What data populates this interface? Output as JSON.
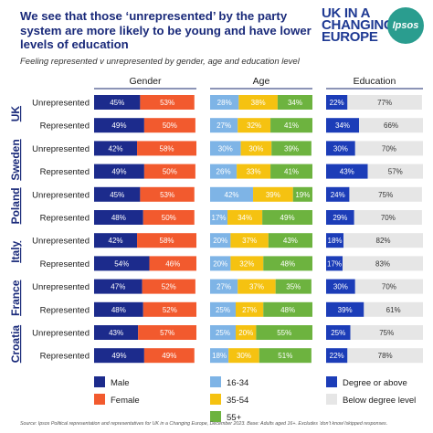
{
  "title": "We see that those ‘unrepresented’ by the party system are more likely to be young and have lower levels of education",
  "logo": {
    "text": "UK IN A CHANGING EUROPE",
    "partner": "Ipsos"
  },
  "source": "Source: Ipsos Political representation and representatives for UK in a Changing Europe, December 2023. Base: Adults aged 16+. Excludes ‘don’t know’/skipped responses.",
  "colors": {
    "male": "#1c2b8c",
    "female": "#f25a2e",
    "age_16_34": "#7eb4e6",
    "age_35_54": "#f5c211",
    "age_55_plus": "#6db33f",
    "degree": "#1c3db8",
    "below_degree": "#e6e6e6"
  },
  "chart_data": {
    "type": "bar",
    "subtitle": "Feeling represented v unrepresented by gender, age and education level",
    "panels": [
      "Gender",
      "Age",
      "Education"
    ],
    "countries": [
      "UK",
      "Sweden",
      "Poland",
      "Italy",
      "France",
      "Croatia"
    ],
    "rows": [
      {
        "country": "UK",
        "group": "Unrepresented",
        "gender": [
          45,
          53
        ],
        "age": [
          28,
          38,
          34
        ],
        "education": [
          22,
          77
        ]
      },
      {
        "country": "UK",
        "group": "Represented",
        "gender": [
          49,
          50
        ],
        "age": [
          27,
          32,
          41
        ],
        "education": [
          34,
          66
        ]
      },
      {
        "country": "Sweden",
        "group": "Unrepresented",
        "gender": [
          42,
          58
        ],
        "age": [
          30,
          30,
          39
        ],
        "education": [
          30,
          70
        ]
      },
      {
        "country": "Sweden",
        "group": "Represented",
        "gender": [
          49,
          50
        ],
        "age": [
          26,
          33,
          41
        ],
        "education": [
          43,
          57
        ]
      },
      {
        "country": "Poland",
        "group": "Unrepresented",
        "gender": [
          45,
          53
        ],
        "age": [
          42,
          39,
          19
        ],
        "education": [
          24,
          75
        ]
      },
      {
        "country": "Poland",
        "group": "Represented",
        "gender": [
          48,
          50
        ],
        "age": [
          17,
          34,
          49
        ],
        "education": [
          29,
          70
        ]
      },
      {
        "country": "Italy",
        "group": "Unrepresented",
        "gender": [
          42,
          58
        ],
        "age": [
          20,
          37,
          43
        ],
        "education": [
          18,
          82
        ]
      },
      {
        "country": "Italy",
        "group": "Represented",
        "gender": [
          54,
          46
        ],
        "age": [
          20,
          32,
          48
        ],
        "education": [
          17,
          83
        ]
      },
      {
        "country": "France",
        "group": "Unrepresented",
        "gender": [
          47,
          52
        ],
        "age": [
          27,
          37,
          35
        ],
        "education": [
          30,
          70
        ]
      },
      {
        "country": "France",
        "group": "Represented",
        "gender": [
          48,
          52
        ],
        "age": [
          25,
          27,
          48
        ],
        "education": [
          39,
          61
        ]
      },
      {
        "country": "Croatia",
        "group": "Unrepresented",
        "gender": [
          43,
          57
        ],
        "age": [
          25,
          20,
          55
        ],
        "education": [
          25,
          75
        ]
      },
      {
        "country": "Croatia",
        "group": "Represented",
        "gender": [
          49,
          49
        ],
        "age": [
          18,
          30,
          51
        ],
        "education": [
          22,
          78
        ]
      }
    ],
    "legend": {
      "gender": [
        "Male",
        "Female"
      ],
      "age": [
        "16-34",
        "35-54",
        "55+"
      ],
      "education": [
        "Degree or above",
        "Below degree level"
      ]
    }
  }
}
